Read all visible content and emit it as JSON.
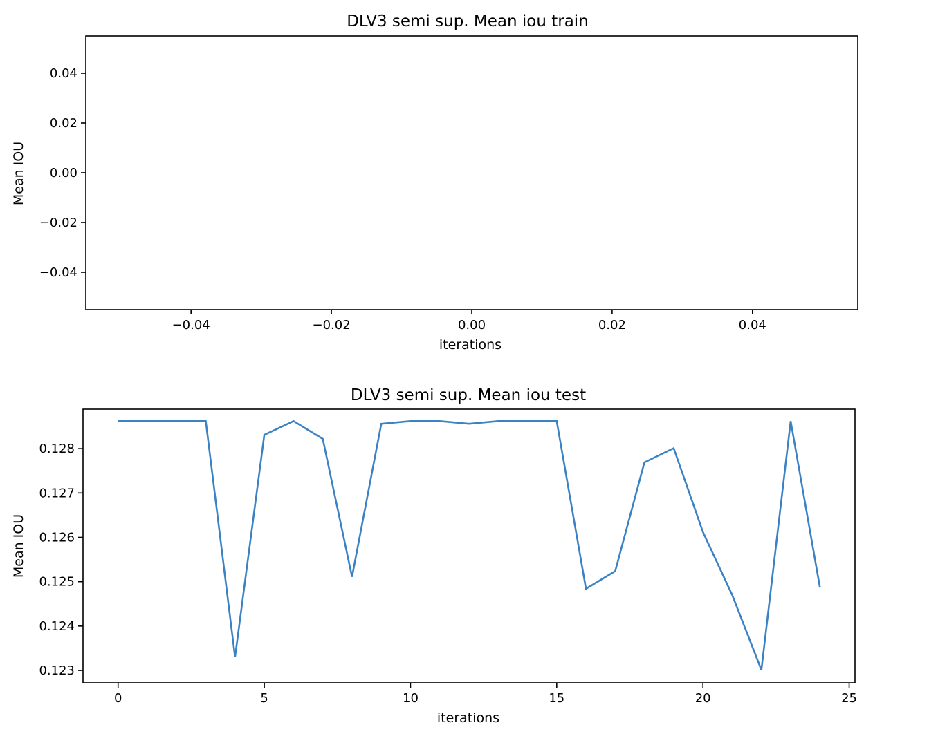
{
  "chart_data": [
    {
      "type": "line",
      "title": "DLV3 semi sup. Mean iou train",
      "xlabel": "iterations",
      "ylabel": "Mean IOU",
      "xlim": [
        -0.055,
        0.055
      ],
      "ylim": [
        -0.055,
        0.055
      ],
      "xticks": [
        -0.04,
        -0.02,
        0.0,
        0.02,
        0.04
      ],
      "xtick_labels": [
        "−0.04",
        "−0.02",
        "0.00",
        "0.02",
        "0.04"
      ],
      "yticks": [
        0.04,
        0.02,
        0.0,
        -0.02,
        -0.04
      ],
      "ytick_labels": [
        "0.04",
        "0.02",
        "0.00",
        "−0.02",
        "−0.04"
      ],
      "grid": false,
      "series": [
        {
          "x": [],
          "y": [],
          "color": "#3b82c4"
        }
      ]
    },
    {
      "type": "line",
      "title": "DLV3 semi sup. Mean iou test",
      "xlabel": "iterations",
      "ylabel": "Mean IOU",
      "xlim": [
        -1.2,
        25.2
      ],
      "ylim": [
        0.12272,
        0.12889
      ],
      "xticks": [
        0,
        5,
        10,
        15,
        20,
        25
      ],
      "xtick_labels": [
        "0",
        "5",
        "10",
        "15",
        "20",
        "25"
      ],
      "yticks": [
        0.128,
        0.127,
        0.126,
        0.125,
        0.124,
        0.123
      ],
      "ytick_labels": [
        "0.128",
        "0.127",
        "0.126",
        "0.125",
        "0.124",
        "0.123"
      ],
      "grid": false,
      "series": [
        {
          "x": [
            0,
            1,
            2,
            3,
            4,
            5,
            6,
            7,
            8,
            9,
            10,
            11,
            12,
            13,
            14,
            15,
            16,
            17,
            18,
            19,
            20,
            21,
            22,
            23,
            24
          ],
          "y": [
            0.12862,
            0.12862,
            0.12862,
            0.12862,
            0.1233,
            0.12831,
            0.12862,
            0.12822,
            0.12511,
            0.12856,
            0.12862,
            0.12862,
            0.12856,
            0.12862,
            0.12862,
            0.12862,
            0.12484,
            0.12524,
            0.12769,
            0.12801,
            0.12612,
            0.1247,
            0.12301,
            0.12862,
            0.12487
          ],
          "color": "#3b82c4"
        }
      ]
    }
  ]
}
